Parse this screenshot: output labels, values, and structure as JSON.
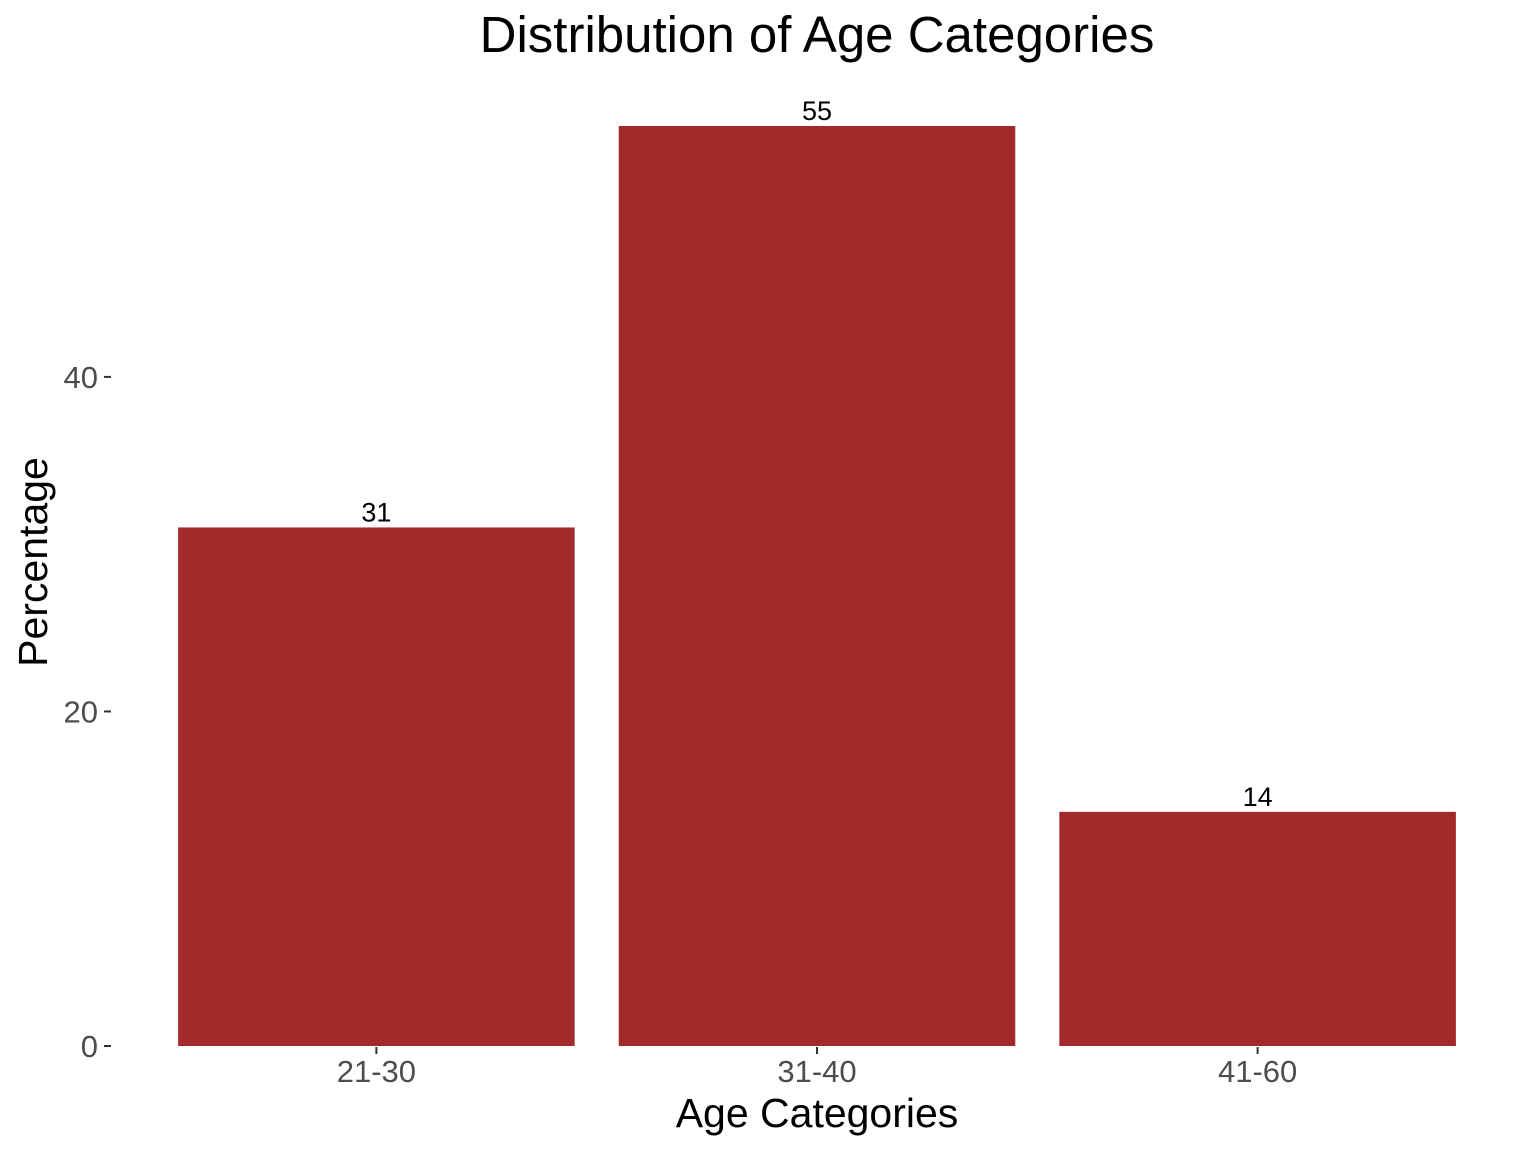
{
  "chart_data": {
    "type": "bar",
    "title": "Distribution of Age Categories",
    "xlabel": "Age Categories",
    "ylabel": "Percentage",
    "categories": [
      "21-30",
      "31-40",
      "41-60"
    ],
    "values": [
      31,
      55,
      14
    ],
    "data_labels": [
      "31",
      "55",
      "14"
    ],
    "ylim": [
      0,
      57.75
    ],
    "yticks": [
      0,
      20,
      40
    ],
    "ytick_labels": [
      "0",
      "20",
      "40"
    ],
    "grid": false,
    "legend": "none",
    "bar_color": "#a32a2b"
  }
}
